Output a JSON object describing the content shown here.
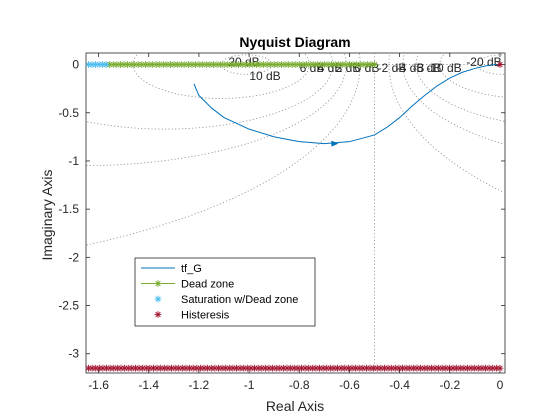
{
  "chart_data": {
    "type": "line",
    "title": "Nyquist Diagram",
    "xlabel": "Real Axis",
    "ylabel": "Imaginary Axis",
    "xlim": [
      -1.65,
      0.02
    ],
    "ylim": [
      -3.2,
      0.12
    ],
    "xticks": [
      -1.6,
      -1.4,
      -1.2,
      -1,
      -0.8,
      -0.6,
      -0.4,
      -0.2,
      0
    ],
    "xtick_labels": [
      "-1.6",
      "-1.4",
      "-1.2",
      "-1",
      "-0.8",
      "-0.6",
      "-0.4",
      "-0.2",
      "0"
    ],
    "yticks": [
      0,
      -0.5,
      -1,
      -1.5,
      -2,
      -2.5,
      -3
    ],
    "ytick_labels": [
      "0",
      "-0.5",
      "-1",
      "-1.5",
      "-2",
      "-2.5",
      "-3"
    ],
    "grid": "M-circles (dotted)",
    "mcircle_labels": [
      "20 dB",
      "10 dB",
      "6 dB",
      "4 dB",
      "2 dB",
      "0 dB",
      "-2 dB",
      "-4 dB",
      "-6 dB",
      "-10 dB",
      "-20 dB"
    ],
    "mcircle_db": [
      20,
      10,
      6,
      4,
      2,
      -2,
      -4,
      -6,
      -10,
      -20
    ],
    "legend_location": "bottom-left",
    "series": [
      {
        "name": "tf_G",
        "color": "#0072BD",
        "marker": "none",
        "x": [
          -1.22,
          -1.2,
          -1.15,
          -1.1,
          -1.0,
          -0.9,
          -0.8,
          -0.7,
          -0.6,
          -0.5,
          -0.45,
          -0.4,
          -0.35,
          -0.3,
          -0.25,
          -0.2,
          -0.15,
          -0.1,
          -0.05,
          -0.02,
          0
        ],
        "y": [
          -0.2,
          -0.32,
          -0.45,
          -0.55,
          -0.67,
          -0.75,
          -0.8,
          -0.82,
          -0.8,
          -0.73,
          -0.65,
          -0.55,
          -0.43,
          -0.32,
          -0.22,
          -0.14,
          -0.08,
          -0.04,
          -0.01,
          0,
          0
        ]
      },
      {
        "name": "Dead zone",
        "color": "#77AC30",
        "marker": "asterisk",
        "x_range": [
          -1.57,
          -0.5
        ],
        "y": 0
      },
      {
        "name": "Saturation w/Dead zone",
        "color": "#4DBEEE",
        "marker": "asterisk",
        "x_range": [
          -1.64,
          -1.57
        ],
        "y": 0
      },
      {
        "name": "Histeresis",
        "color": "#A2142F",
        "marker": "asterisk",
        "x_range": [
          -1.64,
          0
        ],
        "y": -3.15,
        "extra_points": [
          [
            0,
            0
          ]
        ]
      }
    ],
    "vertical_line_x": -0.5
  }
}
